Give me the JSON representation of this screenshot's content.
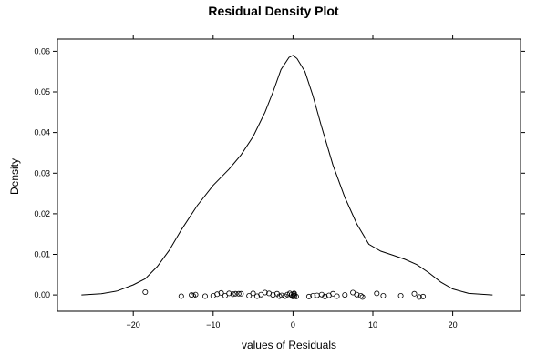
{
  "chart_data": {
    "type": "line",
    "title": "Residual Density Plot",
    "xlabel": "values of Residuals",
    "ylabel": "Density",
    "xlim": [
      -29.5,
      28.5
    ],
    "ylim": [
      -0.004,
      0.063
    ],
    "xticks": [
      -20,
      -10,
      0,
      10,
      20
    ],
    "xtick_labels": [
      "−20",
      "−10",
      "0",
      "10",
      "20"
    ],
    "yticks": [
      0.0,
      0.01,
      0.02,
      0.03,
      0.04,
      0.05,
      0.06
    ],
    "ytick_labels": [
      "0.00",
      "0.01",
      "0.02",
      "0.03",
      "0.04",
      "0.05",
      "0.06"
    ],
    "grid": false,
    "series": [
      {
        "x": [
          -26.5,
          -24,
          -22,
          -20,
          -18.5,
          -17,
          -15.5,
          -14,
          -12,
          -10,
          -8,
          -6.5,
          -5,
          -3.5,
          -2.5,
          -1.5,
          -0.5,
          0,
          0.5,
          1.5,
          2.5,
          3.5,
          5,
          6.5,
          8,
          9.5,
          11,
          12.5,
          14,
          15.5,
          17,
          18.5,
          20,
          22,
          25
        ],
        "y": [
          0.0,
          0.0003,
          0.001,
          0.0025,
          0.004,
          0.007,
          0.011,
          0.016,
          0.022,
          0.027,
          0.031,
          0.0345,
          0.039,
          0.045,
          0.05,
          0.0555,
          0.0585,
          0.059,
          0.0582,
          0.055,
          0.049,
          0.042,
          0.032,
          0.024,
          0.0175,
          0.0125,
          0.0108,
          0.0098,
          0.0088,
          0.0075,
          0.0055,
          0.0032,
          0.0015,
          0.0004,
          0.0
        ]
      }
    ],
    "rug": {
      "x": [
        -18.5,
        -14,
        -12.7,
        -12.5,
        -12.2,
        -11,
        -10,
        -9.5,
        -9,
        -8.5,
        -8,
        -7.5,
        -7.2,
        -6.8,
        -6.5,
        -5.5,
        -5,
        -4.5,
        -4,
        -3.5,
        -3,
        -2.5,
        -2,
        -1.7,
        -1.4,
        -1,
        -0.7,
        -0.4,
        -0.2,
        0,
        0.05,
        0.1,
        0.15,
        0.2,
        0.4,
        2,
        2.5,
        3,
        3.6,
        4,
        4.5,
        5,
        5.5,
        6.5,
        7.5,
        8,
        8.5,
        8.7,
        10.5,
        11.3,
        13.5,
        15.2,
        15.8,
        16.3
      ],
      "y": [
        0.0007,
        -0.0003,
        0.0,
        -0.0002,
        0.0001,
        -0.0003,
        -0.0002,
        0.0002,
        0.0005,
        -0.0002,
        0.0004,
        0.0002,
        0.0003,
        0.0003,
        0.0003,
        -0.0002,
        0.0004,
        -0.0003,
        0.0001,
        0.0006,
        0.0004,
        0.0,
        0.0003,
        -0.0003,
        -0.0001,
        -0.0003,
        0.0001,
        0.0004,
        0.0,
        -0.0004,
        -0.0001,
        0.0002,
        0.0004,
        -0.0002,
        -0.0004,
        -0.0004,
        -0.0002,
        -0.0001,
        0.0001,
        -0.0004,
        -0.0001,
        0.0003,
        -0.0003,
        0.0,
        0.0006,
        0.0001,
        -0.0002,
        -0.0005,
        0.0004,
        -0.0002,
        -0.0002,
        0.0003,
        -0.0005,
        -0.0004
      ]
    }
  }
}
